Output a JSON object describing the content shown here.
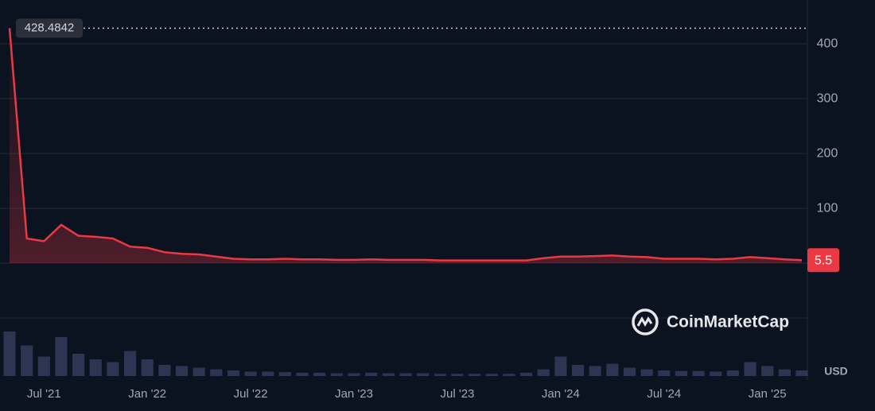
{
  "chart_data": {
    "type": "line",
    "x": [
      "2021-05",
      "2021-06",
      "2021-07",
      "2021-08",
      "2021-09",
      "2021-10",
      "2021-11",
      "2021-12",
      "2022-01",
      "2022-02",
      "2022-03",
      "2022-04",
      "2022-05",
      "2022-06",
      "2022-07",
      "2022-08",
      "2022-09",
      "2022-10",
      "2022-11",
      "2022-12",
      "2023-01",
      "2023-02",
      "2023-03",
      "2023-04",
      "2023-05",
      "2023-06",
      "2023-07",
      "2023-08",
      "2023-09",
      "2023-10",
      "2023-11",
      "2023-12",
      "2024-01",
      "2024-02",
      "2024-03",
      "2024-04",
      "2024-05",
      "2024-06",
      "2024-07",
      "2024-08",
      "2024-09",
      "2024-10",
      "2024-11",
      "2024-12",
      "2025-01",
      "2025-02",
      "2025-03"
    ],
    "values": [
      428.4842,
      45,
      40,
      70,
      50,
      48,
      45,
      30,
      28,
      20,
      17,
      16,
      12,
      8,
      7,
      7,
      8,
      7,
      7,
      6,
      6,
      7,
      6,
      6,
      6,
      5,
      5,
      5,
      5,
      5,
      5,
      9,
      12,
      12,
      13,
      14,
      12,
      11,
      8,
      8,
      8,
      7,
      8,
      11,
      9,
      7,
      5.5
    ],
    "volume": [
      80,
      55,
      35,
      70,
      40,
      30,
      25,
      45,
      30,
      20,
      18,
      15,
      12,
      10,
      8,
      8,
      7,
      6,
      6,
      5,
      5,
      6,
      5,
      5,
      5,
      4,
      4,
      4,
      4,
      4,
      6,
      12,
      35,
      20,
      18,
      22,
      15,
      12,
      10,
      9,
      9,
      8,
      10,
      25,
      18,
      12,
      10
    ],
    "color": "#ea3943",
    "xlim": [
      "2021-05",
      "2025-03"
    ],
    "xticks": [
      {
        "value": "2021-07",
        "label": "Jul '21"
      },
      {
        "value": "2022-01",
        "label": "Jan '22"
      },
      {
        "value": "2022-07",
        "label": "Jul '22"
      },
      {
        "value": "2023-01",
        "label": "Jan '23"
      },
      {
        "value": "2023-07",
        "label": "Jul '23"
      },
      {
        "value": "2024-01",
        "label": "Jan '24"
      },
      {
        "value": "2024-07",
        "label": "Jul '24"
      },
      {
        "value": "2025-01",
        "label": "Jan '25"
      }
    ],
    "ylim": [
      -100,
      480
    ],
    "yticks": [
      100,
      200,
      300,
      400
    ],
    "grid": true,
    "currency": "USD",
    "watermark": "CoinMarketCap"
  }
}
